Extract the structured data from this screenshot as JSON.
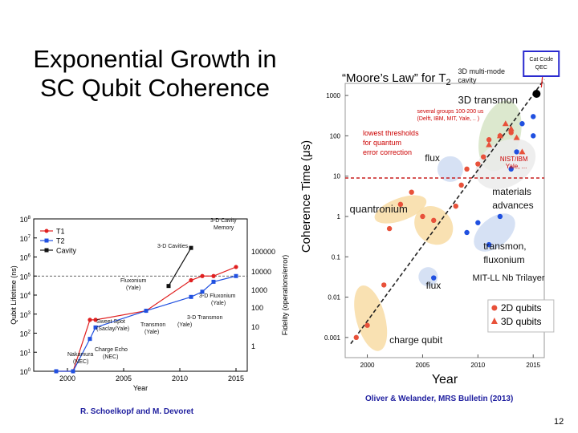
{
  "slide": {
    "title_line1": "Exponential Growth in",
    "title_line2": "SC Qubit Coherence",
    "credit_left": "R. Schoelkopf and M. Devoret",
    "credit_right": "Oliver & Welander, MRS Bulletin (2013)",
    "page_number": "12"
  },
  "chart_data": [
    {
      "type": "line",
      "ylabel": "Qubit Lifetime (ns)",
      "ylabel_right": "Fidelity (operations/error)",
      "xlabel": "Year",
      "x_ticks": [
        "2000",
        "2005",
        "2010",
        "2015"
      ],
      "y_ticks": [
        "10^0",
        "10^1",
        "10^2",
        "10^3",
        "10^4",
        "10^5",
        "10^6",
        "10^7",
        "10^8"
      ],
      "right_ticks": [
        "1",
        "10",
        "100",
        "1000",
        "10000",
        "100000"
      ],
      "xlim": [
        1997,
        2016
      ],
      "ylim_log10": [
        0,
        8
      ],
      "legend": [
        "T1",
        "T2",
        "Cavity"
      ],
      "colors": {
        "T1": "#e02020",
        "T2": "#2050e0",
        "Cavity": "#111111"
      },
      "series": [
        {
          "name": "T1",
          "x": [
            1999,
            2000.5,
            2002,
            2002.5,
            2007,
            2011,
            2012,
            2013,
            2015
          ],
          "y": [
            1,
            1,
            500,
            500,
            1500,
            60000,
            100000,
            100000,
            300000
          ]
        },
        {
          "name": "T2",
          "x": [
            1999,
            2000.5,
            2002,
            2002.5,
            2007,
            2011,
            2012,
            2013,
            2015
          ],
          "y": [
            1,
            1,
            50,
            200,
            1500,
            8000,
            15000,
            50000,
            100000
          ]
        },
        {
          "name": "Cavity",
          "x": [
            2009,
            2011
          ],
          "y": [
            30000,
            3000000
          ]
        }
      ],
      "annotations": [
        "3-D Cavity Memory",
        "3-D Cavities",
        "Fluxonium (Yale)",
        "3-D Fluxonium (Yale)",
        "Sweet Spot (Saclay/Yale)",
        "Transmon (Yale)",
        "3-D Transmon (Yale)",
        "Charge Echo (NEC)",
        "Nakamura (NEC)"
      ]
    },
    {
      "type": "scatter",
      "title": "“Moore’s Law” for T",
      "title_sub": "2",
      "xlabel": "Year",
      "ylabel": "Coherence Time (μs)",
      "x_ticks": [
        "2000",
        "2005",
        "2010",
        "2015"
      ],
      "y_ticks": [
        "0.001",
        "0.01",
        "0.1",
        "1",
        "10",
        "100",
        "1000"
      ],
      "xlim": [
        1998,
        2016
      ],
      "ylim_log10": [
        -3.5,
        3.3
      ],
      "series": [
        {
          "name": "2D qubits",
          "color": "#e8513a",
          "points": [
            [
              1999,
              0.001
            ],
            [
              2000,
              0.002
            ],
            [
              2001.5,
              0.02
            ],
            [
              2002,
              0.5
            ],
            [
              2003,
              2
            ],
            [
              2004,
              4
            ],
            [
              2005,
              1
            ],
            [
              2006,
              0.8
            ],
            [
              2008,
              1.8
            ],
            [
              2008.5,
              6
            ],
            [
              2009,
              15
            ],
            [
              2010,
              20
            ],
            [
              2010.5,
              30
            ],
            [
              2011,
              80
            ],
            [
              2012,
              100
            ],
            [
              2013,
              120
            ]
          ]
        },
        {
          "name": "3D qubits",
          "color": "#e8513a",
          "points": [
            [
              2011,
              60
            ],
            [
              2012,
              100
            ],
            [
              2012.5,
              200
            ],
            [
              2013,
              150
            ],
            [
              2013.5,
              90
            ],
            [
              2014,
              40
            ]
          ]
        },
        {
          "name": "Nb Trilayer",
          "color": "#2050e0",
          "points": [
            [
              2006,
              0.03
            ],
            [
              2009,
              0.4
            ],
            [
              2010,
              0.7
            ],
            [
              2011,
              0.2
            ],
            [
              2012,
              1
            ],
            [
              2013,
              15
            ],
            [
              2013.5,
              40
            ],
            [
              2014,
              200
            ],
            [
              2015,
              100
            ],
            [
              2015,
              300
            ]
          ]
        }
      ],
      "trend": {
        "x": [
          1998.5,
          2016
        ],
        "y": [
          0.0007,
          2500
        ]
      },
      "threshold_us": 9,
      "annotations": {
        "transmon3d": "3D transmon",
        "several": "several groups 100-200 us",
        "several2": "(Delft, IBM, MIT, Yale, .. )",
        "lowest1": "lowest thresholds",
        "lowest2": "for quantum",
        "lowest3": "error correction",
        "flux_upper": "flux",
        "nist": "NIST/IBM",
        "nist2": "Yale, ...",
        "quantronium": "quantronium",
        "materials1": "materials",
        "materials2": "advances",
        "transmon2": "transmon,",
        "fluxonium": "fluxonium",
        "mit": "MIT-LL Nb Trilayer",
        "flux_lower": "flux",
        "charge": "charge qubit",
        "multimode1": "3D multi-mode",
        "multimode2": "cavity",
        "catcode1": "Cat Code",
        "catcode2": "QEC"
      },
      "legend": [
        "2D qubits",
        "3D qubits"
      ]
    }
  ]
}
